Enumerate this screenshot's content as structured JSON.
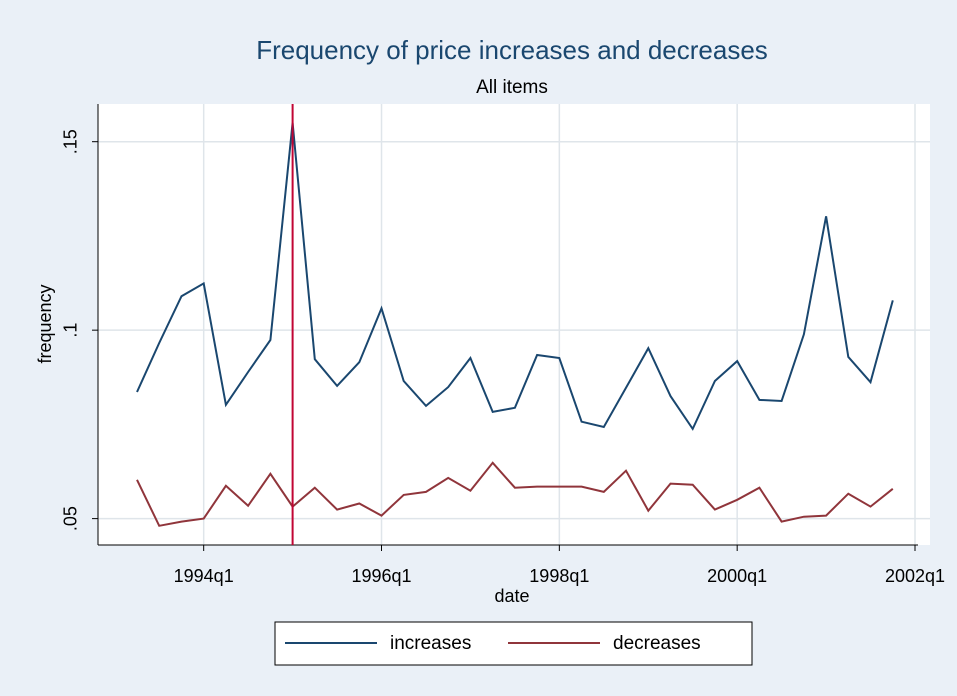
{
  "chart_data": {
    "type": "line",
    "title": "Frequency of price increases and decreases",
    "subtitle": "All items",
    "x_label": "date",
    "y_label": "frequency",
    "x": [
      "1993q2",
      "1993q3",
      "1993q4",
      "1994q1",
      "1994q2",
      "1994q3",
      "1994q4",
      "1995q1",
      "1995q2",
      "1995q3",
      "1995q4",
      "1996q1",
      "1996q2",
      "1996q3",
      "1996q4",
      "1997q1",
      "1997q2",
      "1997q3",
      "1997q4",
      "1998q1",
      "1998q2",
      "1998q3",
      "1998q4",
      "1999q1",
      "1999q2",
      "1999q3",
      "1999q4",
      "2000q1",
      "2000q2",
      "2000q3",
      "2000q4",
      "2001q1",
      "2001q2",
      "2001q3",
      "2001q4"
    ],
    "series": [
      {
        "name": "increases",
        "color": "#1a476f",
        "values": [
          0.0836,
          0.0966,
          0.109,
          0.1124,
          0.0802,
          0.0889,
          0.0974,
          0.155,
          0.0923,
          0.0852,
          0.0915,
          0.1058,
          0.0865,
          0.0799,
          0.0849,
          0.0926,
          0.0783,
          0.0794,
          0.0934,
          0.0926,
          0.0757,
          0.0743,
          0.0847,
          0.0952,
          0.0825,
          0.0738,
          0.0865,
          0.0918,
          0.0815,
          0.0812,
          0.0989,
          0.1302,
          0.0929,
          0.0862,
          0.1079
        ]
      },
      {
        "name": "decreases",
        "color": "#90353b",
        "values": [
          0.0603,
          0.0481,
          0.0492,
          0.05,
          0.0587,
          0.0534,
          0.0619,
          0.0532,
          0.0582,
          0.0524,
          0.054,
          0.0508,
          0.0563,
          0.0571,
          0.0608,
          0.0574,
          0.0648,
          0.0582,
          0.0585,
          0.0585,
          0.0585,
          0.0571,
          0.0627,
          0.0521,
          0.0593,
          0.059,
          0.0524,
          0.055,
          0.0582,
          0.0492,
          0.0505,
          0.0508,
          0.0566,
          0.0532,
          0.0579
        ]
      }
    ],
    "xlim": [
      "1993q2",
      "2002q1"
    ],
    "xticks": [
      "1994q1",
      "1996q1",
      "1998q1",
      "2000q1",
      "2002q1"
    ],
    "ylim": [
      0.043,
      0.16
    ],
    "yticks": [
      {
        "value": 0.05,
        "label": ".05"
      },
      {
        "value": 0.1,
        "label": ".1"
      },
      {
        "value": 0.15,
        "label": ".15"
      }
    ],
    "grid": true,
    "xline": "1995q1",
    "xline_color": "#c10534",
    "legend_position": "bottom"
  }
}
